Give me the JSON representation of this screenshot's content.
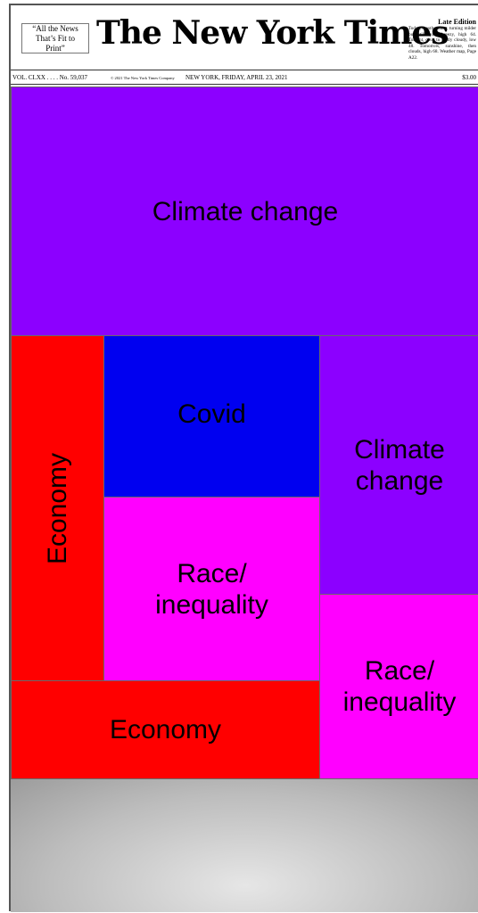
{
  "masthead": {
    "slogan": "“All the News That’s Fit to Print”",
    "title": "The New York Times",
    "edition": "Late Edition",
    "weather": "Today, mostly sunny, turning milder but still quite breezy, high 64. Tonight, clear to partly cloudy, low 48. Tomorrow, sunshine, then clouds, high 68. Weather map, Page A22.",
    "volume": "VOL. CLXX . . . . No. 59,037",
    "copyright": "© 2021 The New York Times Company",
    "dateline": "NEW YORK, FRIDAY, APRIL 23, 2021",
    "price": "$3.00"
  },
  "blocks": [
    {
      "label": "Climate change",
      "color": "#8c00ff"
    },
    {
      "label": "Economy",
      "color": "#ff0000"
    },
    {
      "label": "Covid",
      "color": "#0000f0"
    },
    {
      "label": "Race/ inequality",
      "color": "#ff00ff"
    },
    {
      "label": "Climate change",
      "color": "#8c00ff"
    },
    {
      "label": "Race/ inequality",
      "color": "#ff00ff"
    },
    {
      "label": "Economy",
      "color": "#ff0000"
    }
  ]
}
